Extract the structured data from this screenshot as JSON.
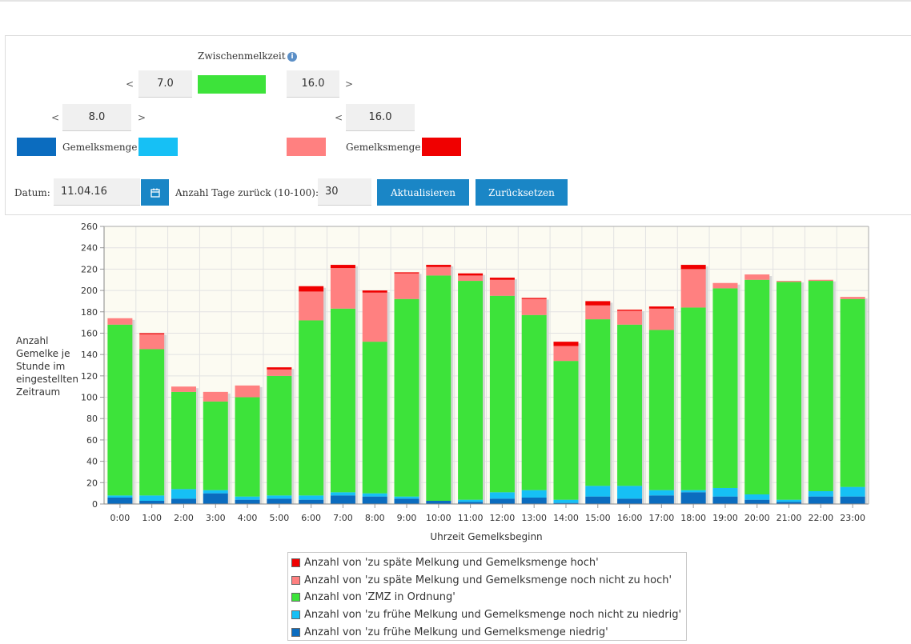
{
  "form": {
    "zmz_title": "Zwischenmelkzeit",
    "zmz_low": "7.0",
    "zmz_high": "16.0",
    "lt": "<",
    "gt": ">",
    "amt_low": "8.0",
    "amt_high": "16.0",
    "amount_label": "Gemelksmenge",
    "date_label": "Datum:",
    "date_value": "11.04.16",
    "days_label": "Anzahl Tage zurück (10-100):",
    "days_value": "30",
    "update_button": "Aktualisieren",
    "reset_button": "Zurücksetzen",
    "info_glyph": "i"
  },
  "colors": {
    "early_low": "#0b6cbf",
    "early_ok": "#16c0f5",
    "ok": "#3de33a",
    "late_ok": "#ff8080",
    "late_high": "#f00000",
    "zmz_bar": "#3de33a"
  },
  "chart_data": {
    "type": "bar",
    "stacked": true,
    "categories": [
      "0:00",
      "1:00",
      "2:00",
      "3:00",
      "4:00",
      "5:00",
      "6:00",
      "7:00",
      "8:00",
      "9:00",
      "10:00",
      "11:00",
      "12:00",
      "13:00",
      "14:00",
      "15:00",
      "16:00",
      "17:00",
      "18:00",
      "19:00",
      "20:00",
      "21:00",
      "22:00",
      "23:00"
    ],
    "series": [
      {
        "name": "Anzahl von 'zu frühe Melkung und Gemelksmenge niedrig'",
        "color": "#0b6cbf",
        "values": [
          6,
          3,
          5,
          10,
          4,
          5,
          4,
          8,
          7,
          5,
          3,
          2,
          5,
          6,
          1,
          7,
          5,
          8,
          11,
          7,
          4,
          2,
          7,
          7
        ]
      },
      {
        "name": "Anzahl von 'zu frühe Melkung und Gemelksmenge noch nicht zu niedrig'",
        "color": "#16c0f5",
        "values": [
          2,
          5,
          9,
          3,
          3,
          3,
          4,
          3,
          3,
          2,
          0,
          2,
          6,
          7,
          3,
          10,
          12,
          5,
          2,
          8,
          5,
          2,
          5,
          9
        ]
      },
      {
        "name": "Anzahl von 'ZMZ in Ordnung'",
        "color": "#3de33a",
        "values": [
          160,
          137,
          91,
          83,
          93,
          112,
          164,
          172,
          142,
          185,
          211,
          205,
          184,
          164,
          130,
          156,
          151,
          150,
          171,
          187,
          201,
          204,
          197,
          176
        ]
      },
      {
        "name": "Anzahl von 'zu späte Melkung und Gemelksmenge noch nicht zu hoch'",
        "color": "#ff8080",
        "values": [
          6,
          14,
          5,
          9,
          11,
          6,
          27,
          38,
          46,
          24,
          8,
          5,
          15,
          15,
          14,
          13,
          13,
          20,
          36,
          5,
          5,
          1,
          1,
          2
        ]
      },
      {
        "name": "Anzahl von 'zu späte Melkung und Gemelksmenge hoch'",
        "color": "#f00000",
        "values": [
          0,
          1,
          0,
          0,
          0,
          2,
          5,
          3,
          2,
          1,
          2,
          2,
          2,
          1,
          4,
          4,
          1,
          2,
          4,
          0,
          0,
          0,
          0,
          0
        ]
      }
    ],
    "title": "",
    "xlabel": "Uhrzeit Gemelksbeginn",
    "ylabel": "Anzahl Gemelke je Stunde im eingestellten Zeitraum",
    "ylim": [
      0,
      260
    ],
    "yticks": [
      0,
      20,
      40,
      60,
      80,
      100,
      120,
      140,
      160,
      180,
      200,
      220,
      240,
      260
    ],
    "grid": true,
    "legend": "bottom"
  },
  "legend_order": [
    4,
    3,
    2,
    1,
    0
  ]
}
